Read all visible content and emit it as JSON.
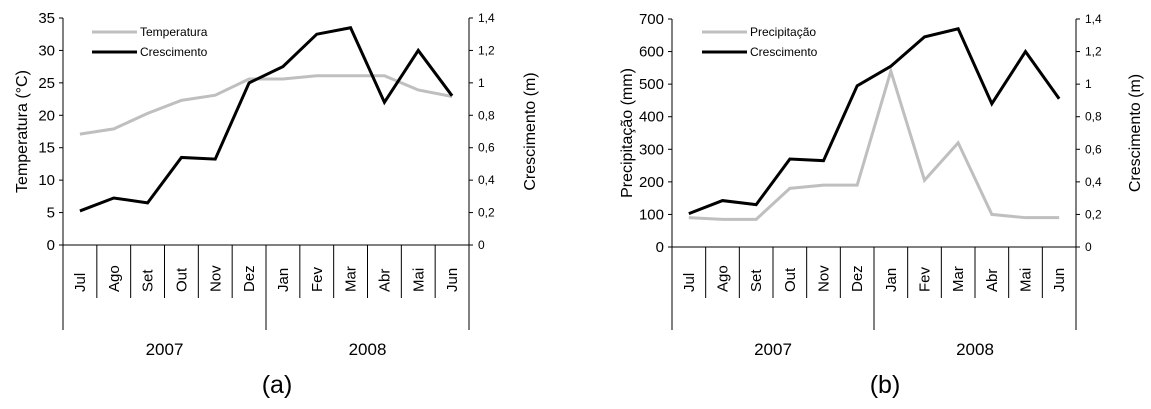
{
  "colors": {
    "series1": "#bfbfbf",
    "series2": "#000000",
    "axis": "#000000"
  },
  "chart_data": [
    {
      "type": "line",
      "caption": "(a)",
      "categories": [
        "Jul",
        "Ago",
        "Set",
        "Out",
        "Nov",
        "Dez",
        "Jan",
        "Fev",
        "Mar",
        "Abr",
        "Mai",
        "Jun"
      ],
      "years": [
        "2007",
        "2008"
      ],
      "ylabel": "Temperatura (°C)",
      "y2label": "Crescimento (m)",
      "ylim": [
        0,
        35
      ],
      "yticks": [
        "0",
        "5",
        "10",
        "15",
        "20",
        "25",
        "30",
        "35"
      ],
      "y2lim": [
        0,
        1.4
      ],
      "y2ticks": [
        "0",
        "0,2",
        "0,4",
        "0,6",
        "0,8",
        "1",
        "1,2",
        "1,4"
      ],
      "legend_position": "top-left",
      "series": [
        {
          "name": "Temperatura",
          "axis": "left",
          "values": [
            17.1,
            17.9,
            20.3,
            22.3,
            23.1,
            25.6,
            25.6,
            26.1,
            26.1,
            26.1,
            23.9,
            22.9
          ]
        },
        {
          "name": "Crescimento",
          "axis": "right",
          "values": [
            0.21,
            0.29,
            0.26,
            0.54,
            0.53,
            1.0,
            1.1,
            1.3,
            1.34,
            0.88,
            1.2,
            0.92
          ]
        }
      ]
    },
    {
      "type": "line",
      "caption": "(b)",
      "categories": [
        "Jul",
        "Ago",
        "Set",
        "Out",
        "Nov",
        "Dez",
        "Jan",
        "Fev",
        "Mar",
        "Abr",
        "Mai",
        "Jun"
      ],
      "years": [
        "2007",
        "2008"
      ],
      "ylabel": "Precipitação (mm)",
      "y2label": "Crescimento (m)",
      "ylim": [
        0,
        700
      ],
      "yticks": [
        "0",
        "100",
        "200",
        "300",
        "400",
        "500",
        "600",
        "700"
      ],
      "y2lim": [
        0,
        1.4
      ],
      "y2ticks": [
        "0",
        "0,2",
        "0,4",
        "0,6",
        "0,8",
        "1",
        "1,2",
        "1,4"
      ],
      "legend_position": "top-left",
      "series": [
        {
          "name": "Precipitação",
          "axis": "left",
          "values": [
            90,
            85,
            85,
            180,
            190,
            190,
            540,
            205,
            320,
            100,
            90,
            90
          ]
        },
        {
          "name": "Crescimento",
          "axis": "right",
          "values": [
            0.205,
            0.285,
            0.26,
            0.54,
            0.53,
            0.99,
            1.11,
            1.29,
            1.34,
            0.88,
            1.2,
            0.91
          ]
        }
      ]
    }
  ]
}
